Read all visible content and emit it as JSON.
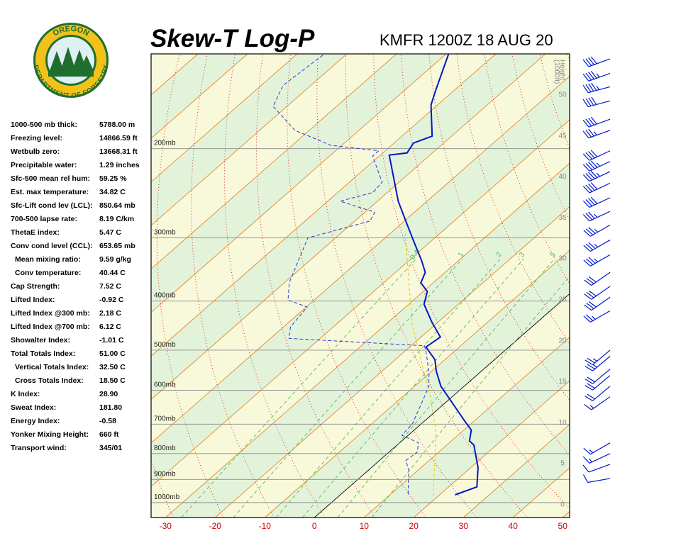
{
  "logo": {
    "top": "OREGON",
    "bottom": "DEPARTMENT OF FORESTRY"
  },
  "indices": [
    {
      "label": "1000-500 mb thick:",
      "value": "5788.00 m"
    },
    {
      "label": "Freezing level:",
      "value": "14866.59 ft"
    },
    {
      "label": "Wetbulb zero:",
      "value": "13668.31 ft"
    },
    {
      "label": "Precipitable water:",
      "value": "1.29 inches"
    },
    {
      "label": "Sfc-500 mean rel hum:",
      "value": "59.25 %"
    },
    {
      "label": "Est. max temperature:",
      "value": "34.82 C"
    },
    {
      "label": "Sfc-Lift cond lev (LCL):",
      "value": "850.64 mb"
    },
    {
      "label": "700-500 lapse rate:",
      "value": "8.19 C/km"
    },
    {
      "label": "ThetaE index:",
      "value": "5.47 C"
    },
    {
      "label": "Conv cond level (CCL):",
      "value": "653.65 mb"
    },
    {
      "label": "Mean mixing ratio:",
      "value": "9.59 g/kg"
    },
    {
      "label": "Conv temperature:",
      "value": "40.44 C"
    },
    {
      "label": "Cap Strength:",
      "value": "7.52 C"
    },
    {
      "label": "Lifted Index:",
      "value": "-0.92 C"
    },
    {
      "label": "Lifted Index @300 mb:",
      "value": "2.18 C"
    },
    {
      "label": "Lifted Index @700 mb:",
      "value": "6.12 C"
    },
    {
      "label": "Showalter Index:",
      "value": "-1.01 C"
    },
    {
      "label": "Total Totals Index:",
      "value": "51.00 C"
    },
    {
      "label": "Vertical Totals Index:",
      "value": "32.50 C"
    },
    {
      "label": "Cross Totals Index:",
      "value": "18.50 C"
    },
    {
      "label": "K Index:",
      "value": "28.90"
    },
    {
      "label": "Sweat Index:",
      "value": "181.80"
    },
    {
      "label": "Energy Index:",
      "value": "-0.58"
    },
    {
      "label": "Yonker Mixing Height:",
      "value": "660 ft"
    },
    {
      "label": "Transport wind:",
      "value": "345/01"
    }
  ],
  "chart_data": {
    "type": "skewt",
    "title": "Skew-T Log-P",
    "subtitle": "KMFR 1200Z 18 AUG 20",
    "xlim": [
      -32.9,
      51.4
    ],
    "xticks": [
      -30,
      -20,
      -10,
      0,
      10,
      20,
      30,
      40,
      50
    ],
    "xtick_color": "#cc0000",
    "ylim": [
      1070,
      130
    ],
    "ylog": true,
    "yticks": [
      {
        "value": 200,
        "label": "200mb"
      },
      {
        "value": 300,
        "label": "300mb"
      },
      {
        "value": 400,
        "label": "400mb"
      },
      {
        "value": 500,
        "label": "500mb"
      },
      {
        "value": 600,
        "label": "600mb"
      },
      {
        "value": 700,
        "label": "700mb"
      },
      {
        "value": 800,
        "label": "800mb"
      },
      {
        "value": 900,
        "label": "900mb"
      },
      {
        "value": 1000,
        "label": "1000mb"
      }
    ],
    "y2label": [
      "Height",
      "(1000ft)"
    ],
    "y2lim": [
      -1.7,
      54.9
    ],
    "y2ticks": [
      0,
      5,
      10,
      15,
      20,
      25,
      30,
      35,
      40,
      45,
      50
    ],
    "band_colors": [
      "#f8f8da",
      "#e3f3da"
    ],
    "isotherm_color": "#e08a2a",
    "zero_isotherm_color": "#000000",
    "dry_adiabat_color": "#d02020",
    "mixing_ratio_color": "#55bb55",
    "mixing_ratios": [
      0.4,
      1,
      2,
      3,
      5,
      8
    ],
    "series": [
      {
        "color": "#0018c8",
        "width": 2,
        "dash": "",
        "pressure": [
          965,
          931,
          853,
          770,
          755,
          719,
          690,
          589,
          550,
          522,
          493,
          471,
          441,
          406,
          383,
          368,
          351,
          333,
          306,
          274,
          254,
          206,
          204,
          195,
          189,
          164,
          154,
          130
        ],
        "values": [
          23.1,
          25.7,
          21.5,
          15.5,
          13.6,
          11.5,
          8.1,
          -4.7,
          -9.1,
          -12.0,
          -16.7,
          -16.1,
          -21.1,
          -26.9,
          -29.2,
          -32.5,
          -34.0,
          -37.4,
          -43.2,
          -50.7,
          -55.8,
          -68.2,
          -65.1,
          -66.1,
          -63.9,
          -71.3,
          -73.6,
          -79.5
        ]
      },
      {
        "color": "#2a3ad8",
        "width": 1,
        "dash": "5,3",
        "pressure": [
          962,
          859,
          826,
          795,
          762,
          736,
          699,
          642,
          589,
          555,
          509,
          490,
          474,
          450,
          411,
          398,
          368,
          300,
          278,
          267,
          254,
          244,
          233,
          207,
          202,
          197,
          184,
          165,
          150,
          130
        ],
        "values": [
          13.5,
          7.9,
          5.3,
          5.7,
          3.8,
          -1.3,
          -1.8,
          -4.4,
          -7.1,
          -10.1,
          -15.0,
          -17.3,
          -46.3,
          -48.6,
          -49.8,
          -55.3,
          -59.0,
          -65.6,
          -56.9,
          -58.0,
          -67.5,
          -62.9,
          -63.4,
          -71.3,
          -71.3,
          -82.2,
          -92.9,
          -102.8,
          -105.6,
          -104.5
        ]
      },
      {
        "color": "#e0d000",
        "width": 1,
        "dash": "4,3",
        "pressure": [
          971,
          726,
          618,
          447,
          294
        ],
        "values": [
          19.0,
          4.9,
          -4.4,
          -24.4,
          -47.0
        ]
      }
    ],
    "wind": {
      "color": "#0018c8",
      "pressure": [
        133,
        142,
        151,
        161,
        175,
        184,
        202,
        212,
        222,
        234,
        250,
        266,
        283,
        303,
        324,
        351,
        374,
        393,
        418,
        500,
        514,
        545,
        561,
        589,
        618,
        762,
        800,
        840,
        896
      ],
      "direction": [
        250,
        250,
        255,
        255,
        250,
        250,
        245,
        245,
        245,
        245,
        245,
        245,
        240,
        240,
        240,
        235,
        235,
        235,
        240,
        230,
        230,
        230,
        230,
        230,
        235,
        240,
        245,
        250,
        260
      ],
      "speed": [
        40,
        45,
        45,
        40,
        40,
        35,
        40,
        45,
        45,
        40,
        40,
        35,
        35,
        35,
        35,
        30,
        30,
        30,
        25,
        25,
        25,
        20,
        20,
        20,
        15,
        15,
        15,
        10,
        10
      ]
    }
  }
}
